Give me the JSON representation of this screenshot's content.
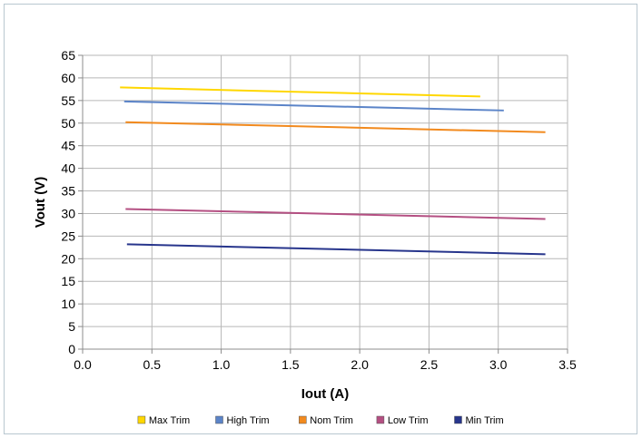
{
  "chart_data": {
    "type": "line",
    "title": "",
    "xlabel": "Iout (A)",
    "ylabel": "Vout (V)",
    "xlim": [
      0,
      3.5
    ],
    "ylim": [
      0,
      65
    ],
    "xticks": [
      0,
      0.5,
      1,
      1.5,
      2,
      2.5,
      3,
      3.5
    ],
    "yticks": [
      0,
      5,
      10,
      15,
      20,
      25,
      30,
      35,
      40,
      45,
      50,
      55,
      60,
      65
    ],
    "xtick_labels": [
      "0.0",
      "0.5",
      "1.0",
      "1.5",
      "2.0",
      "2.5",
      "3.0",
      "3.5"
    ],
    "ytick_labels": [
      "0",
      "5",
      "10",
      "15",
      "20",
      "25",
      "30",
      "35",
      "40",
      "45",
      "50",
      "55",
      "60",
      "65"
    ],
    "grid": true,
    "legend_position": "bottom",
    "series": [
      {
        "name": "Max Trim",
        "color": "#ffd700",
        "x": [
          0.27,
          2.87
        ],
        "y": [
          57.9,
          55.9
        ]
      },
      {
        "name": "High Trim",
        "color": "#5b84c8",
        "x": [
          0.3,
          3.04
        ],
        "y": [
          54.8,
          52.8
        ]
      },
      {
        "name": "Nom Trim",
        "color": "#f28a1e",
        "x": [
          0.31,
          3.34
        ],
        "y": [
          50.2,
          48.0
        ]
      },
      {
        "name": "Low Trim",
        "color": "#b44f82",
        "x": [
          0.31,
          3.34
        ],
        "y": [
          31.0,
          28.8
        ]
      },
      {
        "name": "Min Trim",
        "color": "#27358c",
        "x": [
          0.32,
          3.34
        ],
        "y": [
          23.2,
          21.0
        ]
      }
    ]
  }
}
